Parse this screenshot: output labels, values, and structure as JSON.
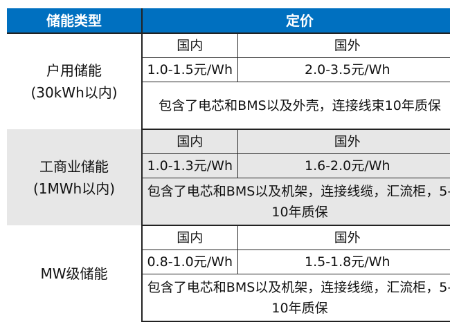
{
  "header": {
    "type": "储能类型",
    "price": "定价"
  },
  "rows": [
    {
      "type": "户用储能",
      "scope": "(30kWh以内)",
      "domestic_label": "国内",
      "foreign_label": "国外",
      "domestic_price": "1.0-1.5元/Wh",
      "foreign_price": "2.0-3.5元/Wh",
      "note": "包含了电芯和BMS以及外壳，连接线束10年质保",
      "background": "#ffffff"
    },
    {
      "type": "工商业储能",
      "scope": "(1MWh以内)",
      "domestic_label": "国内",
      "foreign_label": "国外",
      "domestic_price": "1.0-1.3元/Wh",
      "foreign_price": "1.6-2.0元/Wh",
      "note": "包含了电芯和BMS以及机架，连接线缆，汇流柜，5-10年质保",
      "background": "#e7e7e7"
    },
    {
      "type": "MW级储能",
      "scope": "",
      "domestic_label": "国内",
      "foreign_label": "国外",
      "domestic_price": "0.8-1.0元/Wh",
      "foreign_price": "1.5-1.8元/Wh",
      "note": "包含了电芯和BMS以及机架，连接线缆，汇流柜，5-10年质保",
      "background": "#ffffff"
    }
  ],
  "colors": {
    "header_bg": "#0070c0",
    "header_text": "#ffffff",
    "alt_row": "#e7e7e7"
  }
}
